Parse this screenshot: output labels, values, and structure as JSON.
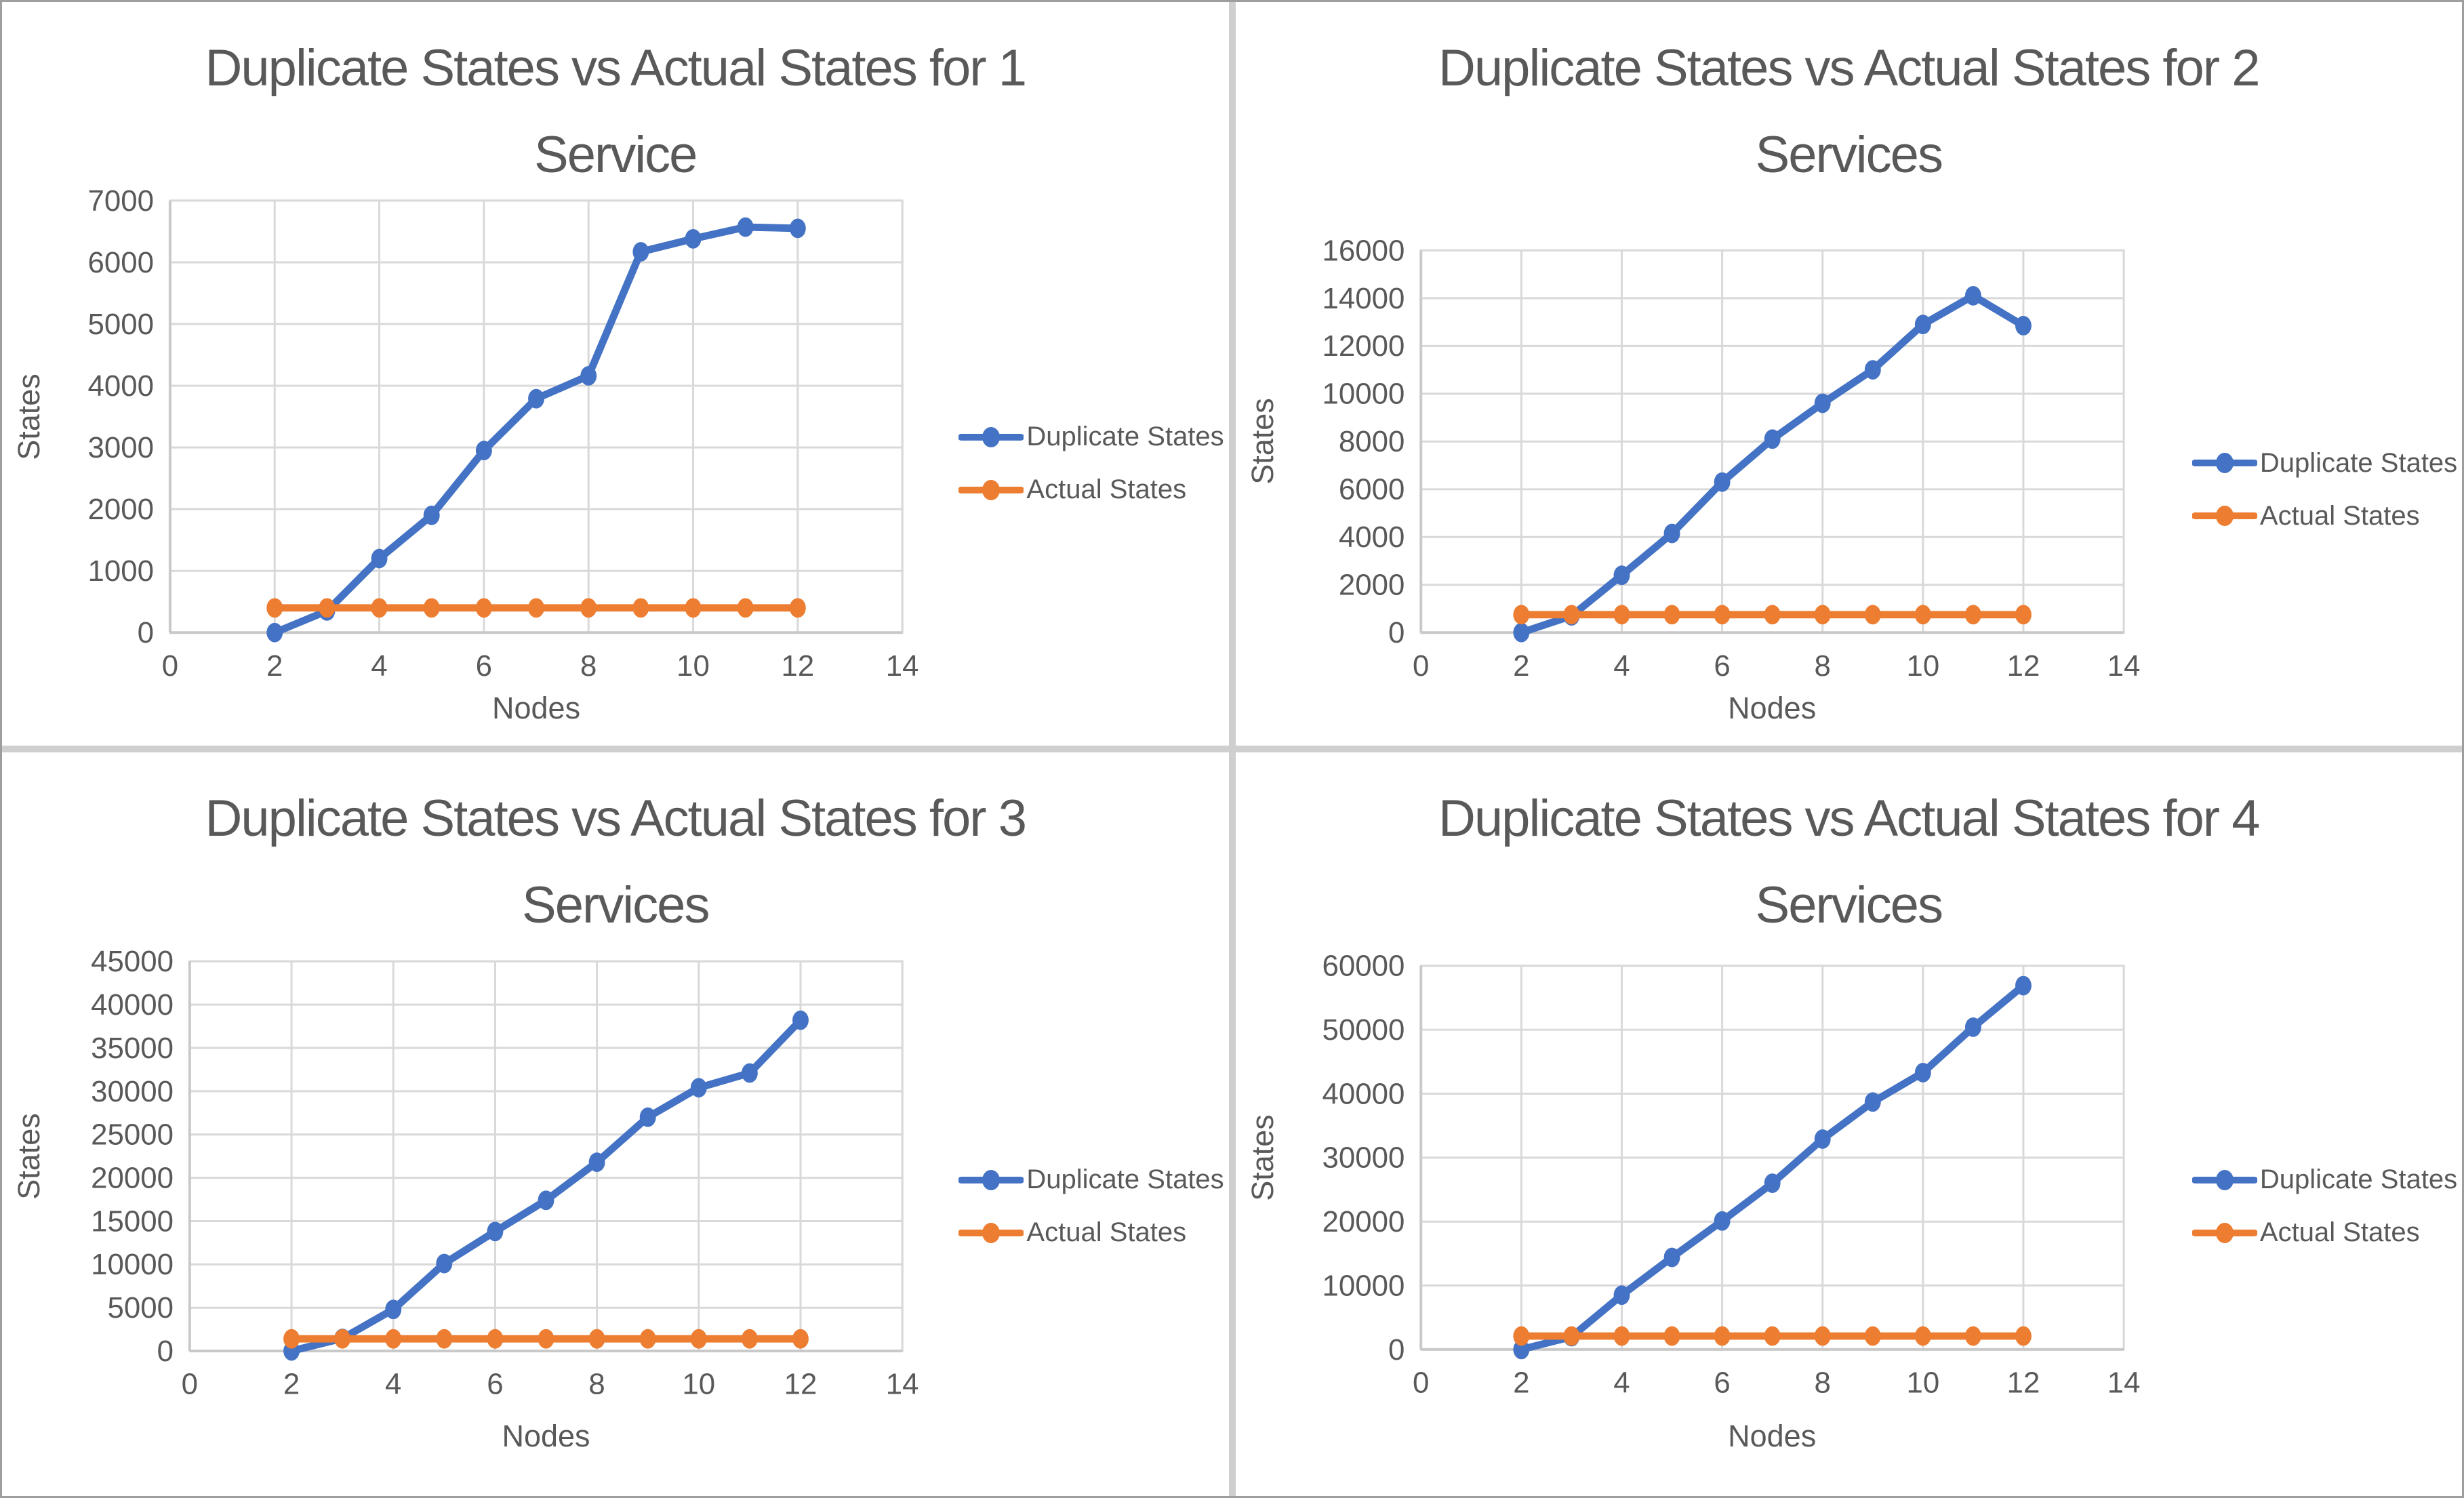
{
  "page": {
    "background": "#cfcfcf",
    "panel_background": "#ffffff"
  },
  "colors": {
    "duplicate_series": "#4472C4",
    "actual_series": "#ED7D31",
    "text": "#595959",
    "gridline": "#D9D9D9",
    "axis_line": "#C9C9C9"
  },
  "chart_data": [
    {
      "type": "line",
      "title": "Duplicate States vs Actual States for 1 Service",
      "title_line1": "Duplicate States vs Actual States for 1",
      "title_line2": "Service",
      "xlabel": "Nodes",
      "ylabel": "States",
      "xlim": [
        0,
        14
      ],
      "ylim": [
        0,
        7000
      ],
      "xticks": [
        0,
        2,
        4,
        6,
        8,
        10,
        12,
        14
      ],
      "yticks": [
        0,
        1000,
        2000,
        3000,
        4000,
        5000,
        6000,
        7000
      ],
      "grid": true,
      "legend_position": "right",
      "x": [
        2,
        3,
        4,
        5,
        6,
        7,
        8,
        9,
        10,
        11,
        12
      ],
      "series": [
        {
          "name": "Duplicate States",
          "color": "#4472C4",
          "values": [
            0,
            350,
            1200,
            1900,
            2950,
            3790,
            4160,
            6170,
            6380,
            6570,
            6550
          ]
        },
        {
          "name": "Actual States",
          "color": "#ED7D31",
          "values": [
            400,
            400,
            400,
            400,
            400,
            400,
            400,
            400,
            400,
            400,
            400
          ]
        }
      ]
    },
    {
      "type": "line",
      "title": "Duplicate States vs Actual States for 2 Services",
      "title_line1": "Duplicate States vs Actual States for 2",
      "title_line2": "Services",
      "xlabel": "Nodes",
      "ylabel": "States",
      "xlim": [
        0,
        14
      ],
      "ylim": [
        0,
        16000
      ],
      "xticks": [
        0,
        2,
        4,
        6,
        8,
        10,
        12,
        14
      ],
      "yticks": [
        0,
        2000,
        4000,
        6000,
        8000,
        10000,
        12000,
        14000,
        16000
      ],
      "grid": true,
      "legend_position": "right",
      "x": [
        2,
        3,
        4,
        5,
        6,
        7,
        8,
        9,
        10,
        11,
        12
      ],
      "series": [
        {
          "name": "Duplicate States",
          "color": "#4472C4",
          "values": [
            0,
            700,
            2400,
            4150,
            6300,
            8100,
            9600,
            11000,
            12900,
            14100,
            12850
          ]
        },
        {
          "name": "Actual States",
          "color": "#ED7D31",
          "values": [
            750,
            750,
            750,
            750,
            750,
            750,
            750,
            750,
            750,
            750,
            750
          ]
        }
      ]
    },
    {
      "type": "line",
      "title": "Duplicate States vs Actual States for 3 Services",
      "title_line1": "Duplicate States vs Actual States for 3",
      "title_line2": "Services",
      "xlabel": "Nodes",
      "ylabel": "States",
      "xlim": [
        0,
        14
      ],
      "ylim": [
        0,
        45000
      ],
      "xticks": [
        0,
        2,
        4,
        6,
        8,
        10,
        12,
        14
      ],
      "yticks": [
        0,
        5000,
        10000,
        15000,
        20000,
        25000,
        30000,
        35000,
        40000,
        45000
      ],
      "grid": true,
      "legend_position": "right",
      "x": [
        2,
        3,
        4,
        5,
        6,
        7,
        8,
        9,
        10,
        11,
        12
      ],
      "series": [
        {
          "name": "Duplicate States",
          "color": "#4472C4",
          "values": [
            0,
            1450,
            4800,
            10100,
            13800,
            17400,
            21800,
            27000,
            30400,
            32100,
            38200
          ]
        },
        {
          "name": "Actual States",
          "color": "#ED7D31",
          "values": [
            1400,
            1400,
            1400,
            1400,
            1400,
            1400,
            1400,
            1400,
            1400,
            1400,
            1400
          ]
        }
      ]
    },
    {
      "type": "line",
      "title": "Duplicate States vs Actual States for 4 Services",
      "title_line1": "Duplicate States vs Actual States for 4",
      "title_line2": "Services",
      "xlabel": "Nodes",
      "ylabel": "States",
      "xlim": [
        0,
        14
      ],
      "ylim": [
        0,
        60000
      ],
      "xticks": [
        0,
        2,
        4,
        6,
        8,
        10,
        12,
        14
      ],
      "yticks": [
        0,
        10000,
        20000,
        30000,
        40000,
        50000,
        60000
      ],
      "grid": true,
      "legend_position": "right",
      "x": [
        2,
        3,
        4,
        5,
        6,
        7,
        8,
        9,
        10,
        11,
        12
      ],
      "series": [
        {
          "name": "Duplicate States",
          "color": "#4472C4",
          "values": [
            0,
            2000,
            8500,
            14400,
            20100,
            26000,
            32900,
            38700,
            43300,
            50400,
            56900
          ]
        },
        {
          "name": "Actual States",
          "color": "#ED7D31",
          "values": [
            2100,
            2100,
            2100,
            2100,
            2100,
            2100,
            2100,
            2100,
            2100,
            2100,
            2100
          ]
        }
      ]
    }
  ]
}
